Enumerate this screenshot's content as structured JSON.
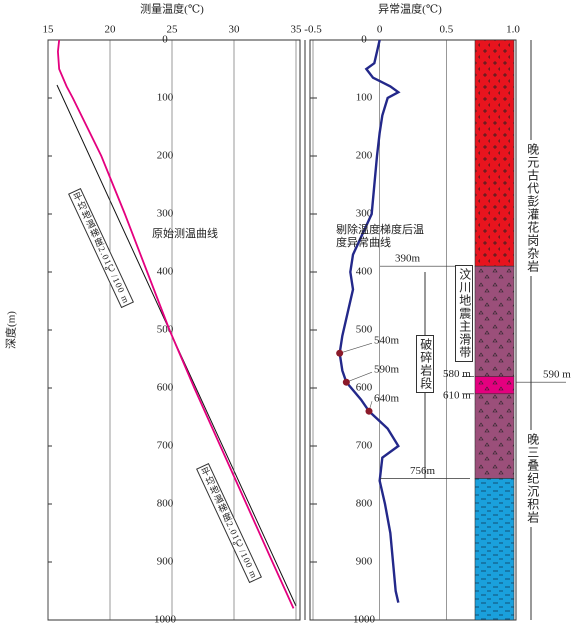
{
  "chart_data": [
    {
      "type": "line",
      "axis_title": "测量温度(℃)",
      "y_label": "深度(m)",
      "grid": true,
      "xlim": [
        15,
        35
      ],
      "xticks": [
        15,
        20,
        25,
        30,
        35
      ],
      "ylim": [
        0,
        1000
      ],
      "yticks": [
        0,
        100,
        200,
        300,
        400,
        500,
        600,
        700,
        800,
        900,
        1000
      ],
      "series": [
        {
          "name": "原始测温曲线",
          "color": "#e4007f",
          "depth": [
            0,
            20,
            50,
            80,
            100,
            200,
            300,
            400,
            500,
            600,
            700,
            800,
            900,
            980
          ],
          "values": [
            15.9,
            15.8,
            15.9,
            16.5,
            17.0,
            19.3,
            21.2,
            23.0,
            24.8,
            26.8,
            28.9,
            31.0,
            33.1,
            34.8
          ]
        }
      ],
      "annotations": [
        "平均地温梯度2.01℃/100 m",
        "平均地温梯度2.01℃/100 m"
      ]
    },
    {
      "type": "line",
      "axis_title": "异常温度(℃)",
      "grid": true,
      "xlim": [
        -0.5,
        1
      ],
      "xticks": [
        -0.5,
        0,
        0.5,
        {
          "value": 1,
          "label": "1.0"
        }
      ],
      "ylim": [
        0,
        1000
      ],
      "yticks": [
        0,
        100,
        200,
        300,
        400,
        500,
        600,
        700,
        800,
        900,
        1000
      ],
      "series": [
        {
          "name": "剔除温度梯度后温度异常曲线",
          "color": "#23288a",
          "depth": [
            0,
            20,
            40,
            50,
            65,
            80,
            90,
            100,
            130,
            160,
            200,
            250,
            300,
            340,
            370,
            400,
            430,
            470,
            510,
            540,
            570,
            590,
            620,
            640,
            670,
            700,
            720,
            760,
            800,
            850,
            900,
            950,
            970
          ],
          "values": [
            0,
            -0.02,
            -0.04,
            -0.1,
            -0.05,
            0.08,
            0.14,
            0.06,
            0.02,
            0,
            -0.02,
            -0.04,
            -0.06,
            -0.14,
            -0.2,
            -0.22,
            -0.2,
            -0.24,
            -0.28,
            -0.3,
            -0.28,
            -0.25,
            -0.14,
            -0.08,
            0.06,
            0.14,
            0.02,
            0.0,
            0.04,
            0.08,
            0.1,
            0.12,
            0.14
          ]
        }
      ],
      "points": [
        {
          "depth": 540,
          "value": -0.3,
          "label": "540m"
        },
        {
          "depth": 590,
          "value": -0.25,
          "label": "590m"
        },
        {
          "depth": 640,
          "value": -0.08,
          "label": "640m"
        }
      ]
    }
  ],
  "lithology": {
    "layers": [
      {
        "top": 0,
        "bottom": 390,
        "color": "#e8141e"
      },
      {
        "top": 390,
        "bottom": 580,
        "color": "#9b4f7a"
      },
      {
        "top": 580,
        "bottom": 610,
        "color": "#e4007f"
      },
      {
        "top": 610,
        "bottom": 756,
        "color": "#9b4f7a"
      },
      {
        "top": 756,
        "bottom": 1000,
        "color": "#1aa0dc"
      }
    ],
    "depth_labels": [
      {
        "value": 390,
        "label": "390m"
      },
      {
        "value": 580,
        "label": "580 m"
      },
      {
        "value": 610,
        "label": "610 m"
      },
      {
        "value": 590,
        "label": "590 m"
      },
      {
        "value": 756,
        "label": "756m"
      }
    ],
    "zones": [
      "汶川地震主滑带",
      "破碎岩段"
    ],
    "formations": [
      "晚元古代彭灌花岗杂岩",
      "晚三叠纪沉积岩"
    ]
  }
}
